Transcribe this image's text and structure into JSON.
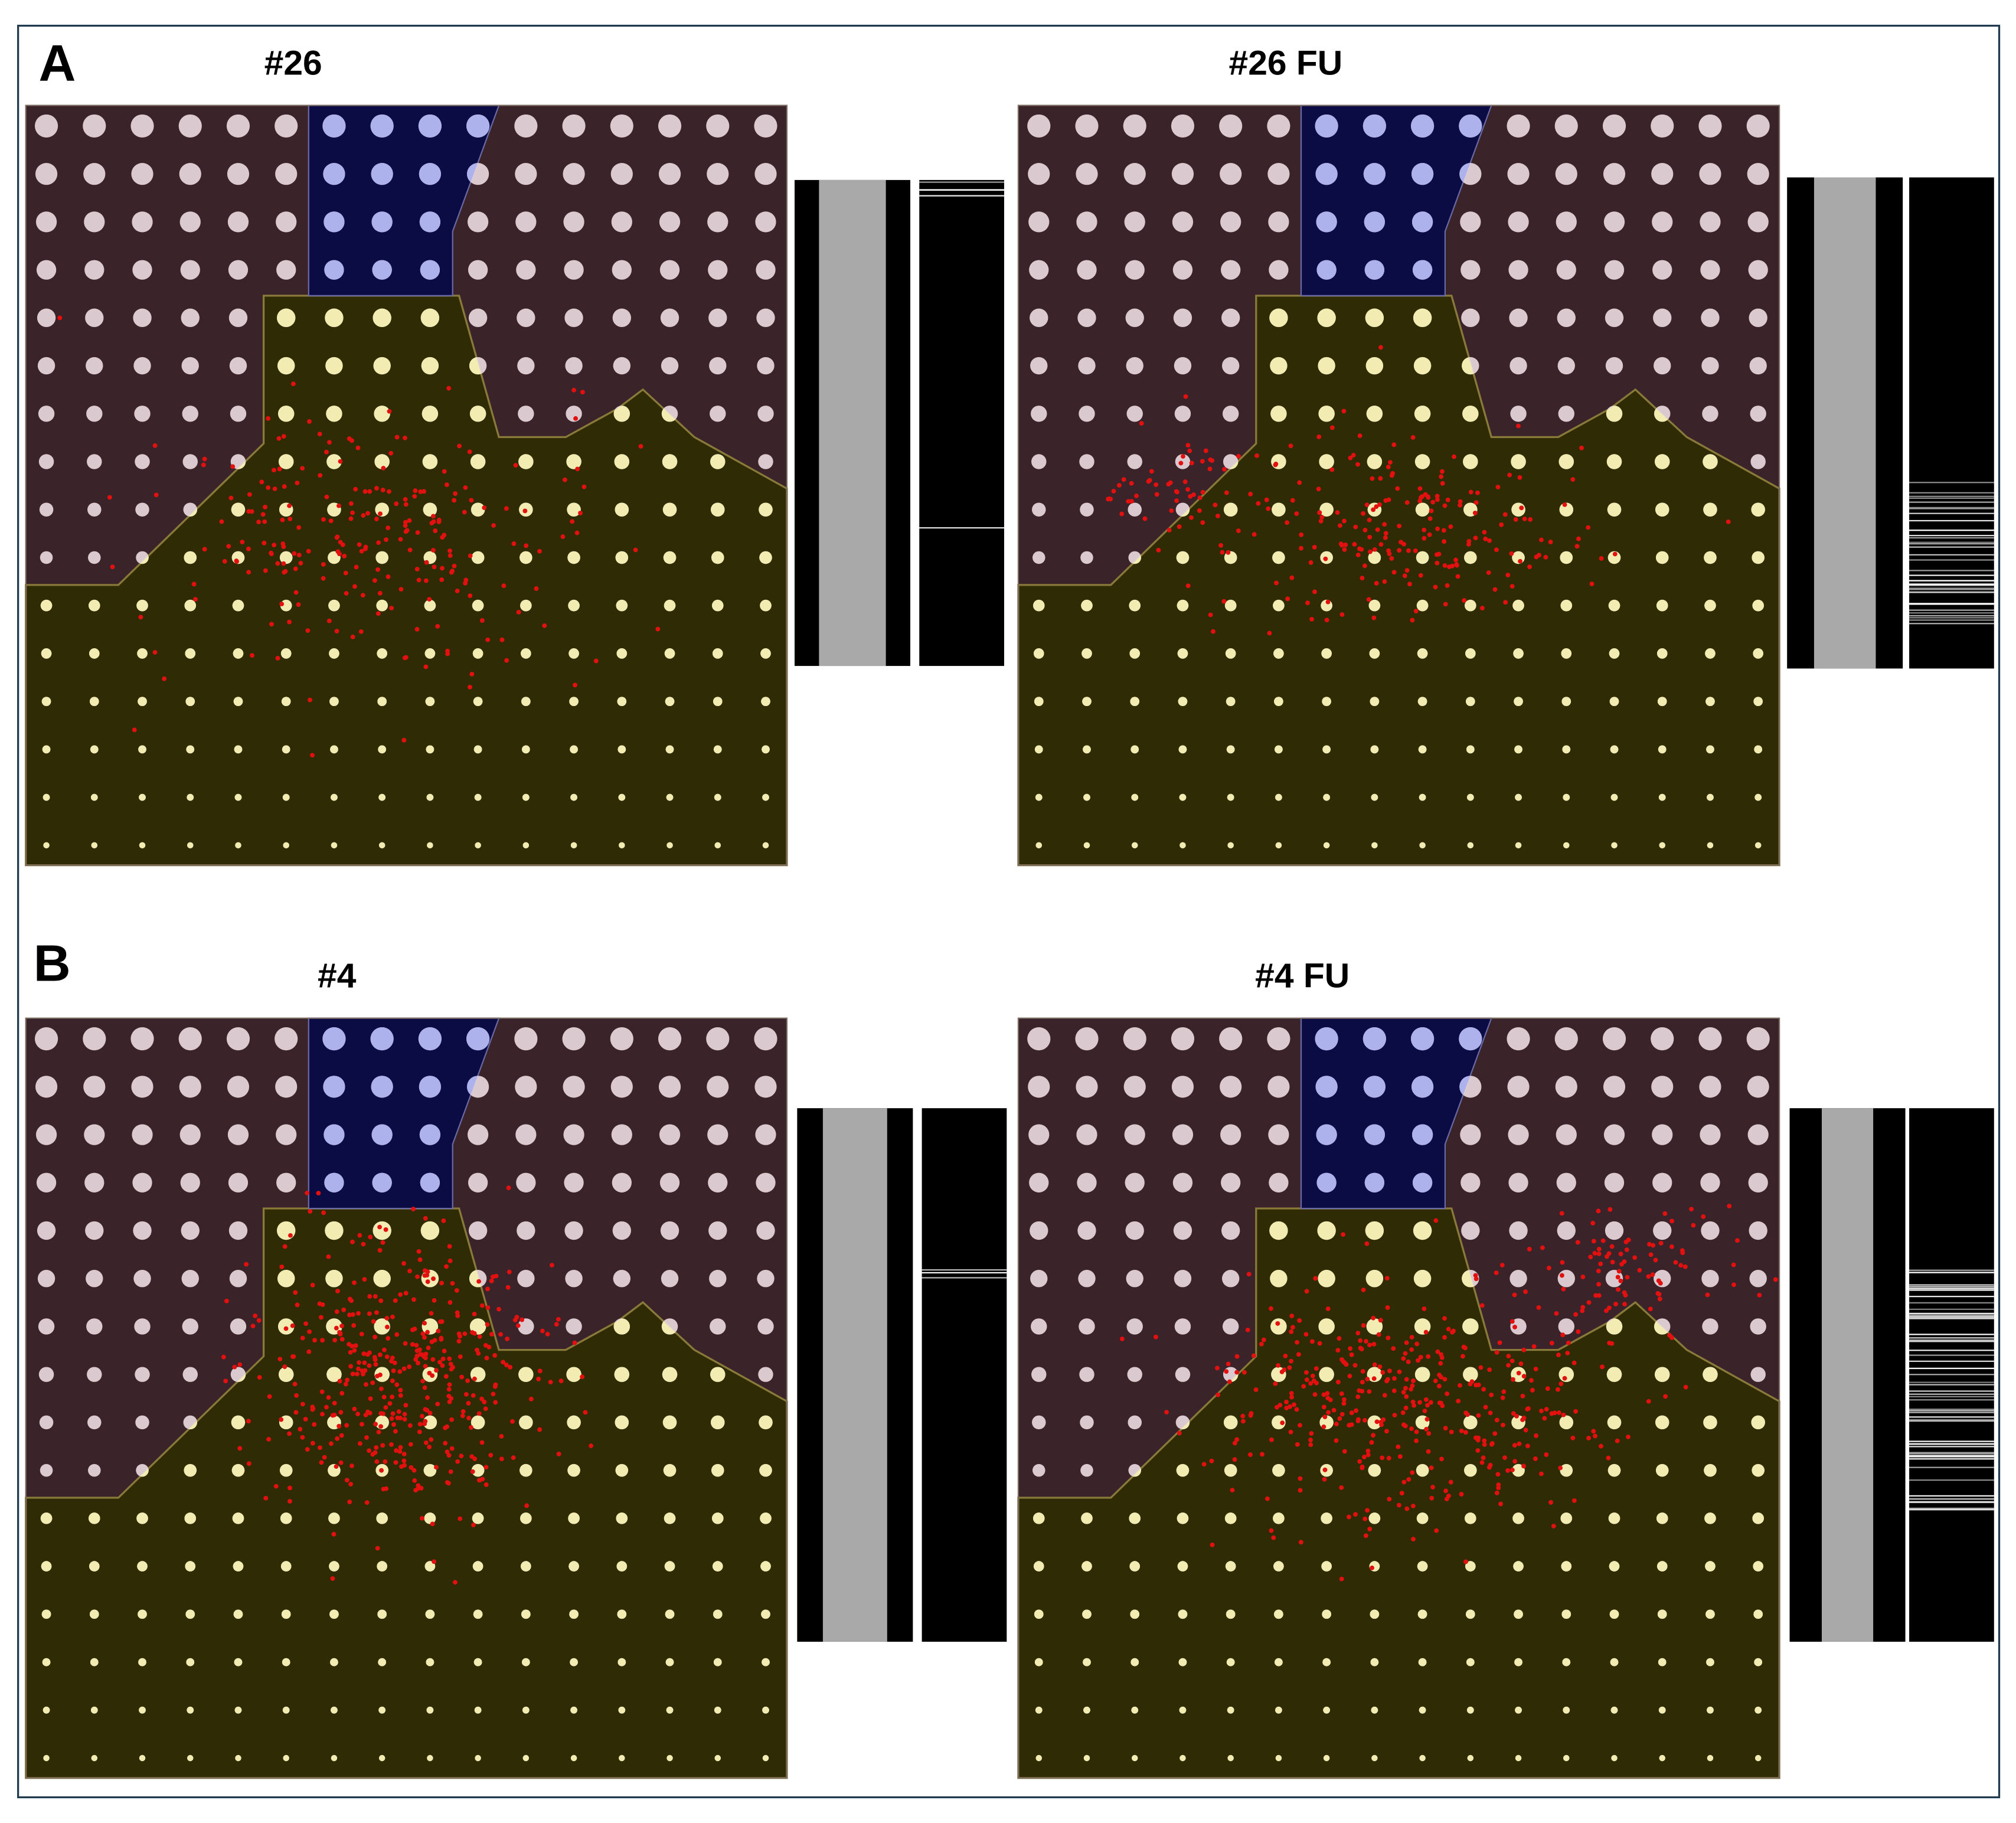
{
  "panel_a": {
    "label": "A",
    "left_title": "#26",
    "right_title": "#26 FU"
  },
  "panel_b": {
    "label": "B",
    "left_title": "#4",
    "right_title": "#4 FU"
  }
}
